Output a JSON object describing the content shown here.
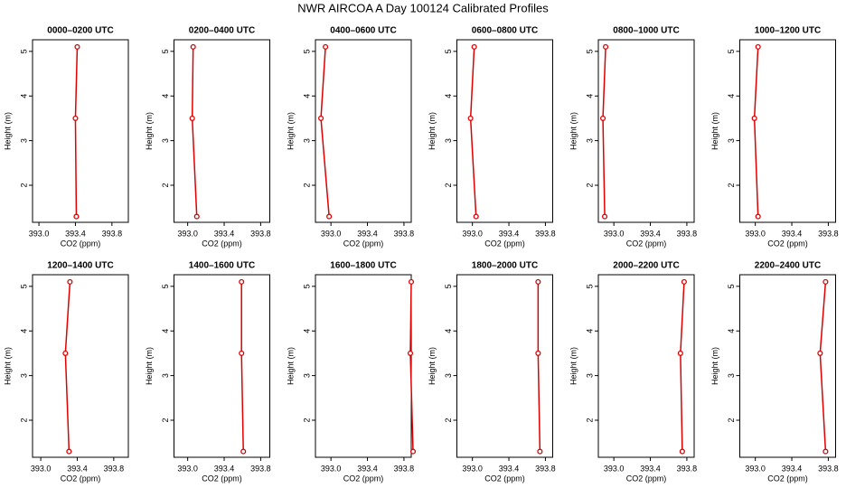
{
  "title": "NWR AIRCOA A  Day 100124  Calibrated Profiles",
  "chart_data": [
    {
      "type": "line",
      "title": "0000–0200 UTC",
      "xlabel": "CO2 (ppm)",
      "ylabel": "Height (m)",
      "color": "#e00000",
      "x": [
        393.42,
        393.4,
        393.41
      ],
      "values": [
        5.1,
        3.5,
        1.3
      ],
      "xlim": [
        392.93,
        393.98
      ],
      "ylim": [
        1.17,
        5.26
      ],
      "xticks": [
        {
          "value": 393.0,
          "label": "393.0"
        },
        {
          "value": 393.4,
          "label": "393.4"
        },
        {
          "value": 393.8,
          "label": "393.8"
        }
      ],
      "yticks": [
        2,
        3,
        4,
        5
      ]
    },
    {
      "type": "line",
      "title": "0200–0400 UTC",
      "xlabel": "CO2 (ppm)",
      "ylabel": "Height (m)",
      "color": "#e00000",
      "x": [
        393.06,
        393.05,
        393.1
      ],
      "values": [
        5.1,
        3.5,
        1.3
      ],
      "xlim": [
        392.85,
        393.9
      ],
      "ylim": [
        1.17,
        5.26
      ],
      "xticks": [
        {
          "value": 393.0,
          "label": "393.0"
        },
        {
          "value": 393.4,
          "label": "393.4"
        },
        {
          "value": 393.8,
          "label": "393.8"
        }
      ],
      "yticks": [
        2,
        3,
        4,
        5
      ]
    },
    {
      "type": "line",
      "title": "0400–0600 UTC",
      "xlabel": "CO2 (ppm)",
      "ylabel": "Height (m)",
      "color": "#e00000",
      "x": [
        392.94,
        392.89,
        392.98
      ],
      "values": [
        5.1,
        3.5,
        1.3
      ],
      "xlim": [
        392.83,
        393.88
      ],
      "ylim": [
        1.17,
        5.26
      ],
      "xticks": [
        {
          "value": 393.0,
          "label": "393.0"
        },
        {
          "value": 393.4,
          "label": "393.4"
        },
        {
          "value": 393.8,
          "label": "393.8"
        }
      ],
      "yticks": [
        2,
        3,
        4,
        5
      ]
    },
    {
      "type": "line",
      "title": "0600–0800 UTC",
      "xlabel": "CO2 (ppm)",
      "ylabel": "Height (m)",
      "color": "#e00000",
      "x": [
        393.02,
        392.98,
        393.04
      ],
      "values": [
        5.1,
        3.5,
        1.3
      ],
      "xlim": [
        392.83,
        393.88
      ],
      "ylim": [
        1.17,
        5.26
      ],
      "xticks": [
        {
          "value": 393.0,
          "label": "393.0"
        },
        {
          "value": 393.4,
          "label": "393.4"
        },
        {
          "value": 393.8,
          "label": "393.8"
        }
      ],
      "yticks": [
        2,
        3,
        4,
        5
      ]
    },
    {
      "type": "line",
      "title": "0800–1000 UTC",
      "xlabel": "CO2 (ppm)",
      "ylabel": "Height (m)",
      "color": "#e00000",
      "x": [
        392.91,
        392.88,
        392.9
      ],
      "values": [
        5.1,
        3.5,
        1.3
      ],
      "xlim": [
        392.83,
        393.88
      ],
      "ylim": [
        1.17,
        5.26
      ],
      "xticks": [
        {
          "value": 393.0,
          "label": "393.0"
        },
        {
          "value": 393.4,
          "label": "393.4"
        },
        {
          "value": 393.8,
          "label": "393.8"
        }
      ],
      "yticks": [
        2,
        3,
        4,
        5
      ]
    },
    {
      "type": "line",
      "title": "1000–1200 UTC",
      "xlabel": "CO2 (ppm)",
      "ylabel": "Height (m)",
      "color": "#e00000",
      "x": [
        393.03,
        392.99,
        393.03
      ],
      "values": [
        5.1,
        3.5,
        1.3
      ],
      "xlim": [
        392.83,
        393.88
      ],
      "ylim": [
        1.17,
        5.26
      ],
      "xticks": [
        {
          "value": 393.0,
          "label": "393.0"
        },
        {
          "value": 393.4,
          "label": "393.4"
        },
        {
          "value": 393.8,
          "label": "393.8"
        }
      ],
      "yticks": [
        2,
        3,
        4,
        5
      ]
    },
    {
      "type": "line",
      "title": "1200–1400 UTC",
      "xlabel": "CO2 (ppm)",
      "ylabel": "Height (m)",
      "color": "#e00000",
      "x": [
        393.32,
        393.27,
        393.31
      ],
      "values": [
        5.1,
        3.5,
        1.3
      ],
      "xlim": [
        392.91,
        393.96
      ],
      "ylim": [
        1.17,
        5.26
      ],
      "xticks": [
        {
          "value": 393.0,
          "label": "393.0"
        },
        {
          "value": 393.4,
          "label": "393.4"
        },
        {
          "value": 393.8,
          "label": "393.8"
        }
      ],
      "yticks": [
        2,
        3,
        4,
        5
      ]
    },
    {
      "type": "line",
      "title": "1400–1600 UTC",
      "xlabel": "CO2 (ppm)",
      "ylabel": "Height (m)",
      "color": "#e00000",
      "x": [
        393.59,
        393.59,
        393.61
      ],
      "values": [
        5.1,
        3.5,
        1.3
      ],
      "xlim": [
        392.85,
        393.9
      ],
      "ylim": [
        1.17,
        5.26
      ],
      "xticks": [
        {
          "value": 393.0,
          "label": "393.0"
        },
        {
          "value": 393.4,
          "label": "393.4"
        },
        {
          "value": 393.8,
          "label": "393.8"
        }
      ],
      "yticks": [
        2,
        3,
        4,
        5
      ]
    },
    {
      "type": "line",
      "title": "1600–1800 UTC",
      "xlabel": "CO2 (ppm)",
      "ylabel": "Height (m)",
      "color": "#e00000",
      "x": [
        393.88,
        393.87,
        393.9
      ],
      "values": [
        5.1,
        3.5,
        1.3
      ],
      "xlim": [
        392.83,
        393.88
      ],
      "ylim": [
        1.17,
        5.26
      ],
      "xticks": [
        {
          "value": 393.0,
          "label": "393.0"
        },
        {
          "value": 393.4,
          "label": "393.4"
        },
        {
          "value": 393.8,
          "label": "393.8"
        }
      ],
      "yticks": [
        2,
        3,
        4,
        5
      ]
    },
    {
      "type": "line",
      "title": "1800–2000 UTC",
      "xlabel": "CO2 (ppm)",
      "ylabel": "Height (m)",
      "color": "#e00000",
      "x": [
        393.72,
        393.72,
        393.74
      ],
      "values": [
        5.1,
        3.5,
        1.3
      ],
      "xlim": [
        392.83,
        393.88
      ],
      "ylim": [
        1.17,
        5.26
      ],
      "xticks": [
        {
          "value": 393.0,
          "label": "393.0"
        },
        {
          "value": 393.4,
          "label": "393.4"
        },
        {
          "value": 393.8,
          "label": "393.8"
        }
      ],
      "yticks": [
        2,
        3,
        4,
        5
      ]
    },
    {
      "type": "line",
      "title": "2000–2200 UTC",
      "xlabel": "CO2 (ppm)",
      "ylabel": "Height (m)",
      "color": "#e00000",
      "x": [
        393.77,
        393.73,
        393.75
      ],
      "values": [
        5.1,
        3.5,
        1.3
      ],
      "xlim": [
        392.83,
        393.88
      ],
      "ylim": [
        1.17,
        5.26
      ],
      "xticks": [
        {
          "value": 393.0,
          "label": "393.0"
        },
        {
          "value": 393.4,
          "label": "393.4"
        },
        {
          "value": 393.8,
          "label": "393.8"
        }
      ],
      "yticks": [
        2,
        3,
        4,
        5
      ]
    },
    {
      "type": "line",
      "title": "2200–2400 UTC",
      "xlabel": "CO2 (ppm)",
      "ylabel": "Height (m)",
      "color": "#e00000",
      "x": [
        393.77,
        393.71,
        393.77
      ],
      "values": [
        5.1,
        3.5,
        1.3
      ],
      "xlim": [
        392.83,
        393.88
      ],
      "ylim": [
        1.17,
        5.26
      ],
      "xticks": [
        {
          "value": 393.0,
          "label": "393.0"
        },
        {
          "value": 393.4,
          "label": "393.4"
        },
        {
          "value": 393.8,
          "label": "393.8"
        }
      ],
      "yticks": [
        2,
        3,
        4,
        5
      ]
    }
  ]
}
